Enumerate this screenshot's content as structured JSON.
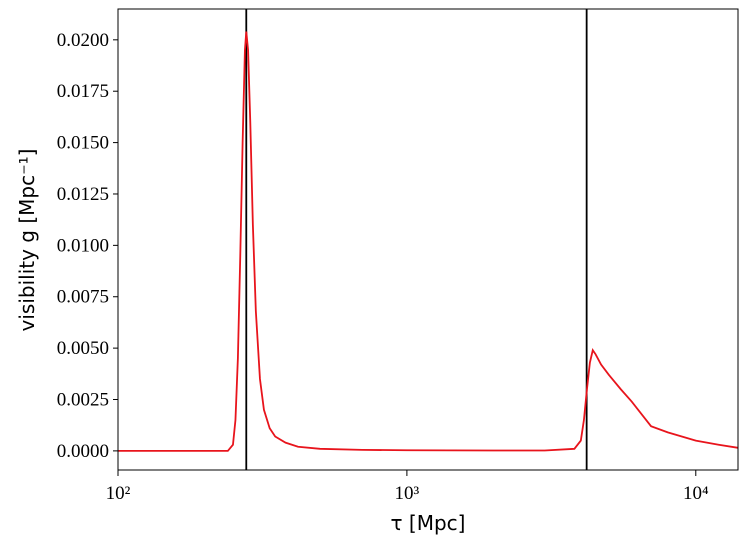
{
  "chart_data": {
    "type": "line",
    "xlabel": "τ  [Mpc]",
    "ylabel": "visibility  g  [Mpc⁻¹]",
    "xscale": "log",
    "xlim": [
      100,
      14000
    ],
    "ylim": [
      -0.00093,
      0.0215
    ],
    "xticks": [
      {
        "value": 100,
        "label": "10²"
      },
      {
        "value": 1000,
        "label": "10³"
      },
      {
        "value": 10000,
        "label": "10⁴"
      }
    ],
    "yticks": [
      {
        "value": 0,
        "label": "0.0000"
      },
      {
        "value": 0.0025,
        "label": "0.0025"
      },
      {
        "value": 0.005,
        "label": "0.0050"
      },
      {
        "value": 0.0075,
        "label": "0.0075"
      },
      {
        "value": 0.01,
        "label": "0.0100"
      },
      {
        "value": 0.0125,
        "label": "0.0125"
      },
      {
        "value": 0.015,
        "label": "0.0150"
      },
      {
        "value": 0.0175,
        "label": "0.0175"
      },
      {
        "value": 0.02,
        "label": "0.0200"
      }
    ],
    "vlines": [
      278,
      4190
    ],
    "vline_color": "#000000",
    "x": [
      100,
      200,
      240,
      250,
      255,
      260,
      265,
      270,
      275,
      278,
      282,
      287,
      293,
      300,
      310,
      320,
      335,
      350,
      380,
      420,
      500,
      700,
      1000,
      2000,
      3000,
      3800,
      4000,
      4100,
      4200,
      4300,
      4400,
      4500,
      4700,
      5000,
      5500,
      6000,
      7000,
      8000,
      10000,
      12000,
      14000
    ],
    "series": [
      {
        "name": "visibility",
        "color": "#e8141c",
        "values": [
          0,
          0,
          0,
          0.0003,
          0.0015,
          0.0045,
          0.0095,
          0.015,
          0.0195,
          0.0204,
          0.0195,
          0.016,
          0.011,
          0.0068,
          0.0035,
          0.002,
          0.0011,
          0.0007,
          0.0004,
          0.0002,
          0.0001,
          5e-05,
          3e-05,
          2e-05,
          2e-05,
          0.0001,
          0.0005,
          0.0015,
          0.003,
          0.0043,
          0.0049,
          0.0047,
          0.0042,
          0.0037,
          0.003,
          0.0024,
          0.0012,
          0.0009,
          0.0005,
          0.0003,
          0.00015
        ]
      }
    ]
  }
}
